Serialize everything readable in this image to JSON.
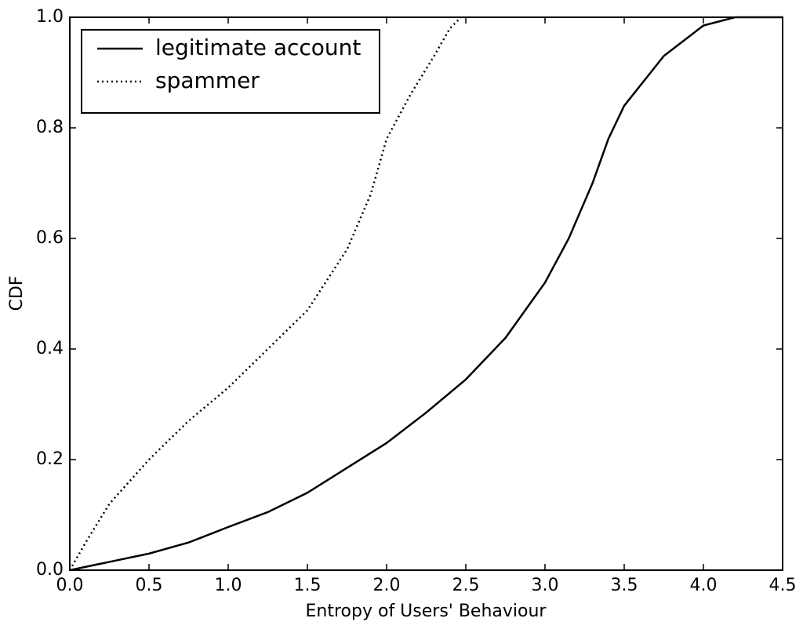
{
  "chart_data": {
    "type": "line",
    "xlabel": "Entropy of Users' Behaviour",
    "ylabel": "CDF",
    "xlim": [
      0,
      4.5
    ],
    "ylim": [
      0,
      1
    ],
    "xticks": [
      {
        "value": 0,
        "label": "0.0"
      },
      0.5,
      {
        "value": 1,
        "label": "1.0"
      },
      1.5,
      {
        "value": 2,
        "label": "2.0"
      },
      2.5,
      {
        "value": 3,
        "label": "3.0"
      },
      3.5,
      {
        "value": 4,
        "label": "4.0"
      },
      4.5
    ],
    "yticks": [
      {
        "value": 0,
        "label": "0.0"
      },
      0.2,
      0.4,
      0.6,
      0.8,
      {
        "value": 1,
        "label": "1.0"
      }
    ],
    "legend": "upper left",
    "series": [
      {
        "name": "legitimate account",
        "color": "#000000",
        "linestyle": "solid",
        "x": [
          0,
          0.25,
          0.5,
          0.75,
          1.0,
          1.25,
          1.5,
          1.75,
          2.0,
          2.25,
          2.5,
          2.75,
          3.0,
          3.15,
          3.3,
          3.4,
          3.5,
          3.75,
          4.0,
          4.2,
          4.5
        ],
        "values": [
          0,
          0.015,
          0.03,
          0.05,
          0.078,
          0.105,
          0.14,
          0.185,
          0.23,
          0.285,
          0.345,
          0.42,
          0.52,
          0.6,
          0.7,
          0.78,
          0.84,
          0.93,
          0.985,
          1.0,
          1.0
        ]
      },
      {
        "name": "spammer",
        "color": "#000000",
        "linestyle": "dotted",
        "x": [
          0,
          0.1,
          0.25,
          0.5,
          0.75,
          1.0,
          1.25,
          1.5,
          1.75,
          1.9,
          2.0,
          2.15,
          2.3,
          2.4,
          2.47
        ],
        "values": [
          0,
          0.05,
          0.12,
          0.2,
          0.27,
          0.33,
          0.4,
          0.47,
          0.58,
          0.68,
          0.78,
          0.86,
          0.93,
          0.98,
          1.0
        ]
      }
    ]
  }
}
